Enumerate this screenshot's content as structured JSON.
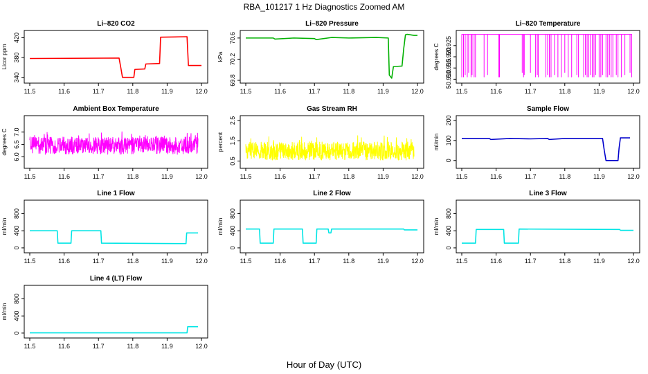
{
  "figure": {
    "title": "RBA_101217  1 Hz Diagnostics Zoomed AM",
    "xlabel": "Hour of Day (UTC)"
  },
  "chart_data": [
    {
      "type": "line",
      "title": "Li–820 CO2",
      "ylabel": "Licor ppm",
      "color": "#ff0000",
      "xlim": [
        11.5,
        12.0
      ],
      "ylim": [
        334,
        429
      ],
      "xticks": [
        "11.5",
        "11.6",
        "11.7",
        "11.8",
        "11.9",
        "12.0"
      ],
      "yticks": [
        "340",
        "380",
        "420"
      ],
      "series": [
        {
          "x": [
            11.5,
            11.76,
            11.765,
            11.77,
            11.803,
            11.806,
            11.835,
            11.838,
            11.878,
            11.881,
            11.958,
            11.962,
            12.0
          ],
          "y": [
            378,
            379,
            360,
            340,
            340,
            356,
            357,
            367,
            368,
            421,
            422,
            364,
            364
          ]
        }
      ]
    },
    {
      "type": "line",
      "title": "Li–820 Pressure",
      "ylabel": "kPa",
      "color": "#00b000",
      "xlim": [
        11.5,
        12.0
      ],
      "ylim": [
        69.8,
        70.69
      ],
      "xticks": [
        "11.5",
        "11.6",
        "11.7",
        "11.8",
        "11.9",
        "12.0"
      ],
      "yticks": [
        "69.8",
        "70.2",
        "70.6"
      ],
      "series": [
        {
          "x": [
            11.5,
            11.58,
            11.585,
            11.64,
            11.7,
            11.705,
            11.75,
            11.8,
            11.88,
            11.915,
            11.918,
            11.925,
            11.93,
            11.955,
            11.96,
            11.965,
            11.97,
            11.99,
            12.0
          ],
          "y": [
            70.6,
            70.6,
            70.58,
            70.6,
            70.59,
            70.57,
            70.61,
            70.6,
            70.61,
            70.6,
            69.9,
            69.84,
            70.06,
            70.07,
            70.4,
            70.66,
            70.67,
            70.65,
            70.65
          ]
        }
      ]
    },
    {
      "type": "line",
      "title": "Li–820 Temperature",
      "ylabel": "degrees C",
      "color": "#ff00ff",
      "xlim": [
        11.5,
        12.0
      ],
      "ylim": [
        50.9095,
        50.9305
      ],
      "xticks": [
        "11.5",
        "11.6",
        "11.7",
        "11.8",
        "11.9",
        "12.0"
      ],
      "yticks": [
        "50.910",
        "50.915",
        "50.920",
        "50.925"
      ],
      "series": [
        {
          "baseline": 50.93,
          "x": [
            11.5,
            11.505,
            11.51,
            11.516,
            11.52,
            11.527,
            11.53,
            11.536,
            11.54,
            11.565,
            11.575,
            11.608,
            11.61,
            11.676,
            11.68,
            11.682,
            11.7,
            11.715,
            11.72,
            11.723,
            11.745,
            11.75,
            11.755,
            11.76,
            11.77,
            11.78,
            11.79,
            11.8,
            11.81,
            11.82,
            11.835,
            11.84,
            11.855,
            11.86,
            11.865,
            11.87,
            11.875,
            11.88,
            11.885,
            11.89,
            11.9,
            11.905,
            11.91,
            11.92,
            11.925,
            11.93,
            11.935,
            11.94,
            11.95,
            11.955,
            11.965,
            11.975,
            11.99,
            11.995
          ],
          "y": [
            50.911,
            50.911,
            50.912,
            50.911,
            50.913,
            50.911,
            50.912,
            50.911,
            50.911,
            50.911,
            50.912,
            50.911,
            50.911,
            50.913,
            50.911,
            50.912,
            50.913,
            50.911,
            50.912,
            50.911,
            50.911,
            50.912,
            50.911,
            50.911,
            50.912,
            50.911,
            50.911,
            50.913,
            50.911,
            50.911,
            50.912,
            50.911,
            50.911,
            50.912,
            50.911,
            50.911,
            50.912,
            50.911,
            50.911,
            50.912,
            50.911,
            50.911,
            50.912,
            50.911,
            50.911,
            50.912,
            50.911,
            50.911,
            50.912,
            50.911,
            50.911,
            50.912,
            50.913,
            50.911
          ]
        }
      ]
    },
    {
      "type": "line",
      "title": "Ambient Box Temperature",
      "ylabel": "degrees C",
      "color": "#ff00ff",
      "xlim": [
        11.5,
        12.0
      ],
      "ylim": [
        5.65,
        7.55
      ],
      "xticks": [
        "11.5",
        "11.6",
        "11.7",
        "11.8",
        "11.9",
        "12.0"
      ],
      "yticks": [
        "6.0",
        "6.5",
        "7.0"
      ],
      "series": [
        {
          "noise": {
            "center": 6.45,
            "amp": 0.35,
            "min": 5.75,
            "max": 7.25,
            "points": 700
          }
        }
      ]
    },
    {
      "type": "line",
      "title": "Gas Stream RH",
      "ylabel": "percent",
      "color": "#ffff00",
      "xlim": [
        11.5,
        12.0
      ],
      "ylim": [
        0.28,
        2.6
      ],
      "xticks": [
        "11.5",
        "11.6",
        "11.7",
        "11.8",
        "11.9",
        "12.0"
      ],
      "yticks": [
        "0.5",
        "1.5",
        "2.5"
      ],
      "series": [
        {
          "noise": {
            "center": 1.0,
            "amp": 0.45,
            "min": 0.45,
            "max": 2.4,
            "points": 700
          }
        }
      ]
    },
    {
      "type": "line",
      "title": "Sample Flow",
      "ylabel": "ml/min",
      "color": "#0000cc",
      "xlim": [
        11.5,
        12.0
      ],
      "ylim": [
        -25,
        210
      ],
      "xticks": [
        "11.5",
        "11.6",
        "11.7",
        "11.8",
        "11.9",
        "12.0"
      ],
      "yticks": [
        "0",
        "100",
        "200"
      ],
      "series": [
        {
          "x": [
            11.5,
            11.58,
            11.585,
            11.64,
            11.7,
            11.75,
            11.755,
            11.8,
            11.91,
            11.915,
            11.92,
            11.955,
            11.958,
            11.962,
            11.99
          ],
          "y": [
            110,
            110,
            105,
            110,
            108,
            110,
            105,
            110,
            110,
            50,
            0,
            0,
            60,
            113,
            113
          ]
        }
      ]
    },
    {
      "type": "line",
      "title": "Line 1 Flow",
      "ylabel": "ml/min",
      "color": "#00e5e5",
      "xlim": [
        11.5,
        12.0
      ],
      "ylim": [
        -50,
        1050
      ],
      "xticks": [
        "11.5",
        "11.6",
        "11.7",
        "11.8",
        "11.9",
        "12.0"
      ],
      "yticks": [
        "0",
        "400",
        "800"
      ],
      "series": [
        {
          "x": [
            11.5,
            11.58,
            11.582,
            11.62,
            11.622,
            11.707,
            11.709,
            11.955,
            11.957,
            11.99
          ],
          "y": [
            400,
            400,
            110,
            110,
            400,
            400,
            110,
            100,
            350,
            350
          ]
        }
      ]
    },
    {
      "type": "line",
      "title": "Line 2 Flow",
      "ylabel": "ml/min",
      "color": "#00e5e5",
      "xlim": [
        11.5,
        12.0
      ],
      "ylim": [
        -50,
        1050
      ],
      "xticks": [
        "11.5",
        "11.6",
        "11.7",
        "11.8",
        "11.9",
        "12.0"
      ],
      "yticks": [
        "0",
        "400",
        "800"
      ],
      "series": [
        {
          "x": [
            11.5,
            11.54,
            11.542,
            11.58,
            11.582,
            11.665,
            11.667,
            11.705,
            11.707,
            11.74,
            11.742,
            11.748,
            11.75,
            11.96,
            11.962,
            12.0
          ],
          "y": [
            440,
            440,
            110,
            110,
            440,
            440,
            110,
            110,
            440,
            440,
            350,
            350,
            440,
            440,
            420,
            420
          ]
        }
      ]
    },
    {
      "type": "line",
      "title": "Line 3 Flow",
      "ylabel": "ml/min",
      "color": "#00e5e5",
      "xlim": [
        11.5,
        12.0
      ],
      "ylim": [
        -50,
        1050
      ],
      "xticks": [
        "11.5",
        "11.6",
        "11.7",
        "11.8",
        "11.9",
        "12.0"
      ],
      "yticks": [
        "0",
        "400",
        "800"
      ],
      "series": [
        {
          "x": [
            11.5,
            11.54,
            11.542,
            11.622,
            11.624,
            11.665,
            11.667,
            11.96,
            11.962,
            12.0
          ],
          "y": [
            110,
            110,
            430,
            430,
            110,
            110,
            440,
            430,
            410,
            410
          ]
        }
      ]
    },
    {
      "type": "line",
      "title": "Line 4 (LT) Flow",
      "ylabel": "ml/min",
      "color": "#00e5e5",
      "xlim": [
        11.5,
        12.0
      ],
      "ylim": [
        -50,
        1050
      ],
      "xticks": [
        "11.5",
        "11.6",
        "11.7",
        "11.8",
        "11.9",
        "12.0"
      ],
      "yticks": [
        "0",
        "400",
        "800"
      ],
      "series": [
        {
          "x": [
            11.5,
            11.958,
            11.96,
            11.99
          ],
          "y": [
            5,
            5,
            150,
            150
          ]
        }
      ]
    }
  ]
}
